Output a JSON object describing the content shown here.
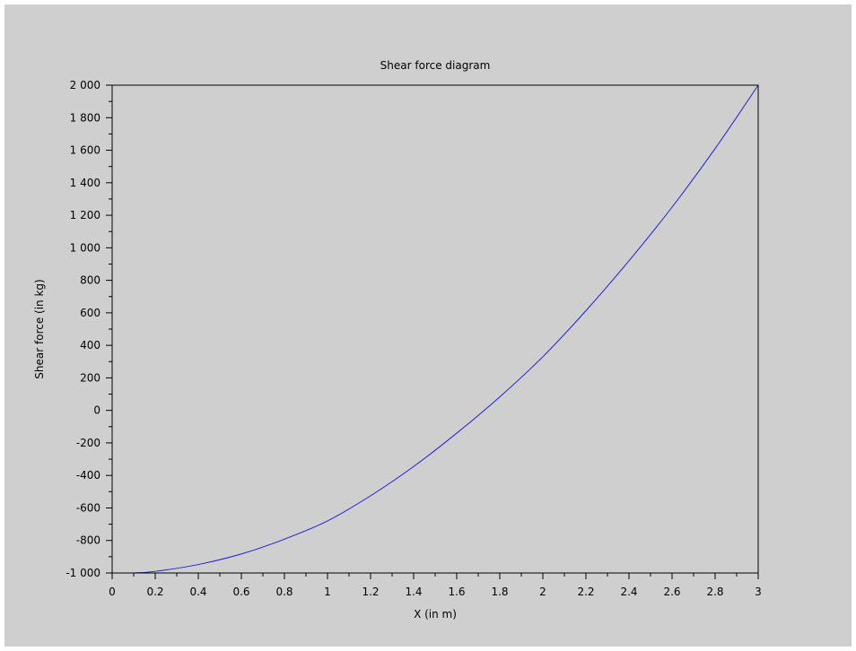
{
  "colors": {
    "background": "#cfcfcf",
    "axes": "#000000",
    "series": "#1f1fd6"
  },
  "chart_data": {
    "type": "line",
    "title": "Shear force diagram",
    "xlabel": "X (in m)",
    "ylabel": "Shear force (in kg)",
    "xlim": [
      0,
      3
    ],
    "ylim": [
      -1000,
      2000
    ],
    "grid": false,
    "x_ticks": [
      "0",
      "0.2",
      "0.4",
      "0.6",
      "0.8",
      "1",
      "1.2",
      "1.4",
      "1.6",
      "1.8",
      "2",
      "2.2",
      "2.4",
      "2.6",
      "2.8",
      "3"
    ],
    "y_ticks": [
      "-1 000",
      "-800",
      "-600",
      "-400",
      "-200",
      "0",
      "200",
      "400",
      "600",
      "800",
      "1 000",
      "1 200",
      "1 400",
      "1 600",
      "1 800",
      "2 000"
    ],
    "series": [
      {
        "x": [
          0.1,
          0.2,
          0.4,
          0.6,
          0.8,
          1.0,
          1.2,
          1.4,
          1.6,
          1.8,
          2.0,
          2.2,
          2.4,
          2.6,
          2.8,
          3.0
        ],
        "values": [
          -1000,
          -990,
          -948,
          -883,
          -792,
          -680,
          -525,
          -345,
          -140,
          83,
          330,
          613,
          920,
          1250,
          1610,
          2000
        ]
      }
    ]
  }
}
